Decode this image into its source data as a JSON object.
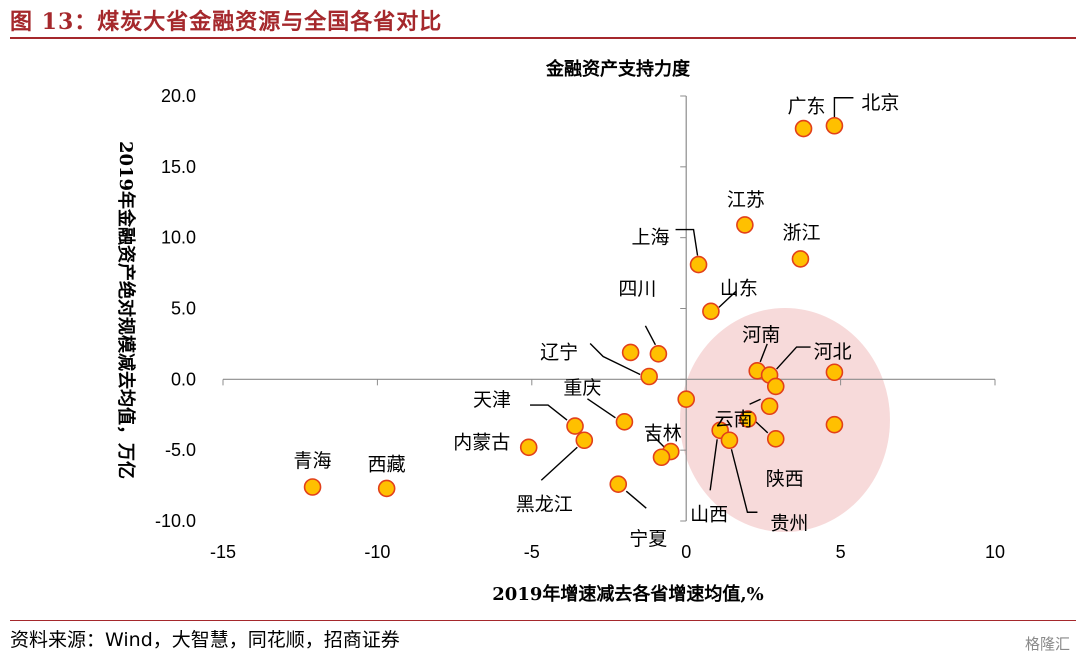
{
  "figure_title": "图 13：煤炭大省金融资源与全国各省对比",
  "source_text": "资料来源：Wind，大智慧，同花顺，招商证券",
  "watermark": "格隆汇",
  "colors": {
    "accent": "#a5282c",
    "point_fill": "#ffc000",
    "point_stroke": "#e2401a",
    "highlight": "#f6d4d4"
  },
  "chart_data": {
    "type": "scatter",
    "title": "金融资产支持力度",
    "xlabel": "2019年增速减去各省增速均值,%",
    "ylabel": "2019年金融资产绝对规模减去均值，万亿",
    "xlim": [
      -15,
      10
    ],
    "ylim": [
      -10,
      20
    ],
    "xticks": [
      "-15",
      "-10",
      "-5",
      "0",
      "5",
      "10"
    ],
    "yticks": [
      "20.0",
      "15.0",
      "10.0",
      "5.0",
      "0.0",
      "-5.0",
      "-10.0"
    ],
    "grid": false,
    "points": [
      {
        "label": "北京",
        "x": 4.8,
        "y": 17.9
      },
      {
        "label": "广东",
        "x": 3.8,
        "y": 17.7
      },
      {
        "label": "江苏",
        "x": 1.9,
        "y": 10.9
      },
      {
        "label": "浙江",
        "x": 3.7,
        "y": 8.5
      },
      {
        "label": "上海",
        "x": 0.4,
        "y": 8.1
      },
      {
        "label": "山东",
        "x": 0.8,
        "y": 4.8
      },
      {
        "label": "四川",
        "x": -0.9,
        "y": 1.8
      },
      {
        "label": "辽宁",
        "x": -1.2,
        "y": 0.2
      },
      {
        "label": "",
        "x": -1.8,
        "y": 1.9
      },
      {
        "label": "河南",
        "x": 2.3,
        "y": 0.6
      },
      {
        "label": "河北",
        "x": 2.7,
        "y": 0.3
      },
      {
        "label": "",
        "x": 4.8,
        "y": 0.5
      },
      {
        "label": "",
        "x": 2.9,
        "y": -0.5
      },
      {
        "label": "",
        "x": 0.0,
        "y": -1.4
      },
      {
        "label": "云南",
        "x": 2.7,
        "y": -1.9
      },
      {
        "label": "",
        "x": 2.0,
        "y": -2.8
      },
      {
        "label": "",
        "x": 4.8,
        "y": -3.2
      },
      {
        "label": "陕西",
        "x": 2.9,
        "y": -4.2
      },
      {
        "label": "山西",
        "x": 1.1,
        "y": -3.6
      },
      {
        "label": "贵州",
        "x": 1.4,
        "y": -4.3
      },
      {
        "label": "天津",
        "x": -3.6,
        "y": -3.3
      },
      {
        "label": "重庆",
        "x": -2.0,
        "y": -3.0
      },
      {
        "label": "黑龙江",
        "x": -3.3,
        "y": -4.3
      },
      {
        "label": "内蒙古",
        "x": -5.1,
        "y": -4.8
      },
      {
        "label": "吉林",
        "x": -0.5,
        "y": -5.1
      },
      {
        "label": "",
        "x": -0.8,
        "y": -5.5
      },
      {
        "label": "宁夏",
        "x": -2.2,
        "y": -7.4
      },
      {
        "label": "青海",
        "x": -12.1,
        "y": -7.6
      },
      {
        "label": "西藏",
        "x": -9.7,
        "y": -7.7
      }
    ]
  }
}
